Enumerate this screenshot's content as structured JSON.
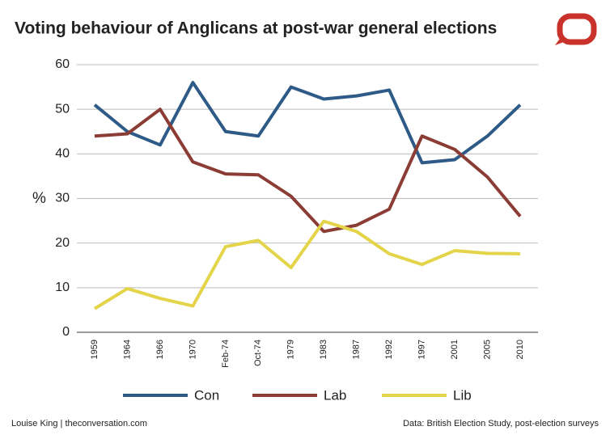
{
  "chart_data": {
    "type": "line",
    "title": "Voting behaviour of Anglicans at post-war general elections",
    "ylabel": "%",
    "categories": [
      "1959",
      "1964",
      "1966",
      "1970",
      "Feb-74",
      "Oct-74",
      "1979",
      "1983",
      "1987",
      "1992",
      "1997",
      "2001",
      "2005",
      "2010"
    ],
    "series": [
      {
        "name": "Con",
        "color": "#2e5a87",
        "values": [
          51,
          45,
          42,
          56,
          45,
          44,
          55,
          52.3,
          53,
          54.3,
          38,
          38.7,
          44,
          51
        ]
      },
      {
        "name": "Lab",
        "color": "#8b3d35",
        "values": [
          44,
          44.5,
          50,
          38.2,
          35.5,
          35.3,
          30.5,
          22.6,
          24,
          27.6,
          44,
          41,
          34.8,
          26
        ]
      },
      {
        "name": "Lib",
        "color": "#e3d44a",
        "values": [
          5.3,
          9.8,
          7.6,
          5.9,
          19.2,
          20.6,
          14.5,
          24.9,
          22.6,
          17.6,
          15.2,
          18.3,
          17.7,
          17.6
        ]
      }
    ],
    "ylim": [
      0,
      60
    ],
    "yticks": [
      0,
      10,
      20,
      30,
      40,
      50,
      60
    ],
    "grid": true,
    "source_left": "Louise King | theconversation.com",
    "source_right": "Data: British Election Study, post-election surveys"
  }
}
